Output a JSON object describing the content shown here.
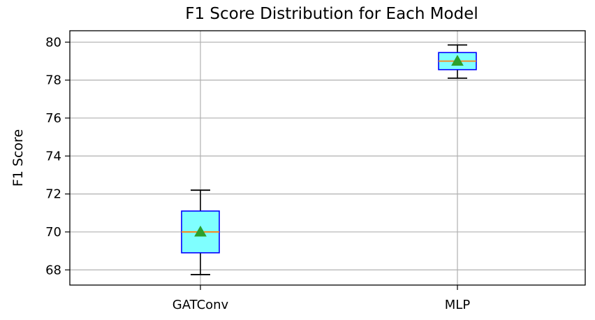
{
  "chart_data": {
    "type": "box",
    "title": "F1 Score Distribution for Each Model",
    "xlabel": "",
    "ylabel": "F1 Score",
    "categories": [
      "GATConv",
      "MLP"
    ],
    "ylim": [
      67.2,
      80.6
    ],
    "yticks": [
      68,
      70,
      72,
      74,
      76,
      78,
      80
    ],
    "grid": true,
    "boxes": [
      {
        "name": "GATConv",
        "whisker_low": 67.75,
        "q1": 68.9,
        "median": 70.0,
        "mean": 70.0,
        "q3": 71.1,
        "whisker_high": 72.2
      },
      {
        "name": "MLP",
        "whisker_low": 78.1,
        "q1": 78.55,
        "median": 79.0,
        "mean": 79.0,
        "q3": 79.45,
        "whisker_high": 79.85
      }
    ],
    "colors": {
      "box_fill": "#7fffff",
      "box_edge": "#0000ff",
      "median": "#ff7f0e",
      "mean_marker": "#2ca02c",
      "whisker": "#000000",
      "grid": "#b0b0b0"
    }
  }
}
